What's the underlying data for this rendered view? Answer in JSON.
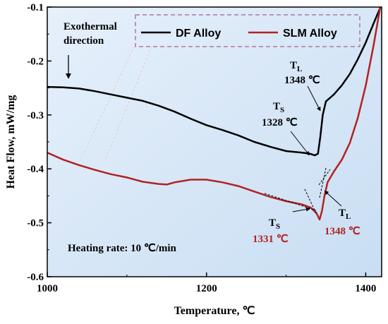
{
  "chart_data": {
    "type": "line",
    "xlabel": "Temperature, ℃",
    "ylabel": "Heat Flow, mW/mg",
    "xlim": [
      1000,
      1420
    ],
    "ylim": [
      -0.6,
      -0.1
    ],
    "x_ticks": [
      "1000",
      "1200",
      "1400"
    ],
    "y_ticks": [
      "-0.6",
      "-0.5",
      "-0.4",
      "-0.3",
      "-0.2",
      "-0.1"
    ],
    "legend": {
      "placement": "top-right",
      "style": "dashed-box"
    },
    "colors": {
      "df": "#000000",
      "slm": "#b22222",
      "background": "#dbe9f7"
    },
    "series": [
      {
        "name": "DF Alloy",
        "color": "#000000",
        "x": [
          1000,
          1020,
          1040,
          1060,
          1080,
          1100,
          1120,
          1140,
          1160,
          1180,
          1200,
          1220,
          1240,
          1260,
          1280,
          1300,
          1320,
          1330,
          1336,
          1340,
          1343,
          1346,
          1350,
          1360,
          1370,
          1380,
          1390,
          1400,
          1410,
          1420
        ],
        "y": [
          -0.248,
          -0.249,
          -0.251,
          -0.256,
          -0.262,
          -0.268,
          -0.274,
          -0.283,
          -0.294,
          -0.307,
          -0.319,
          -0.328,
          -0.338,
          -0.35,
          -0.359,
          -0.367,
          -0.37,
          -0.372,
          -0.375,
          -0.372,
          -0.34,
          -0.3,
          -0.275,
          -0.262,
          -0.245,
          -0.224,
          -0.197,
          -0.166,
          -0.13,
          -0.095
        ]
      },
      {
        "name": "SLM Alloy",
        "color": "#b22222",
        "x": [
          1000,
          1020,
          1040,
          1060,
          1080,
          1100,
          1120,
          1140,
          1150,
          1160,
          1180,
          1200,
          1220,
          1240,
          1260,
          1280,
          1300,
          1320,
          1331,
          1338,
          1342,
          1345,
          1348,
          1352,
          1360,
          1370,
          1380,
          1390,
          1400,
          1410,
          1420
        ],
        "y": [
          -0.37,
          -0.383,
          -0.393,
          -0.402,
          -0.41,
          -0.416,
          -0.424,
          -0.428,
          -0.429,
          -0.425,
          -0.42,
          -0.42,
          -0.425,
          -0.432,
          -0.442,
          -0.452,
          -0.46,
          -0.466,
          -0.472,
          -0.482,
          -0.494,
          -0.478,
          -0.452,
          -0.425,
          -0.405,
          -0.383,
          -0.352,
          -0.306,
          -0.246,
          -0.17,
          -0.085
        ]
      }
    ],
    "annotations": {
      "exo_line1": "Exothermal",
      "exo_line2": "direction",
      "df_tl_label": "T",
      "df_tl_sub": "L",
      "df_tl_value": "1348 ℃",
      "df_ts_label": "T",
      "df_ts_sub": "S",
      "df_ts_value": "1328 ℃",
      "slm_ts_label": "T",
      "slm_ts_sub": "S",
      "slm_ts_value": "1331 ℃",
      "slm_tl_label": "T",
      "slm_tl_sub": "L",
      "slm_tl_value": "1348 ℃",
      "heating_rate": "Heating rate: 10 ℃/min"
    }
  }
}
